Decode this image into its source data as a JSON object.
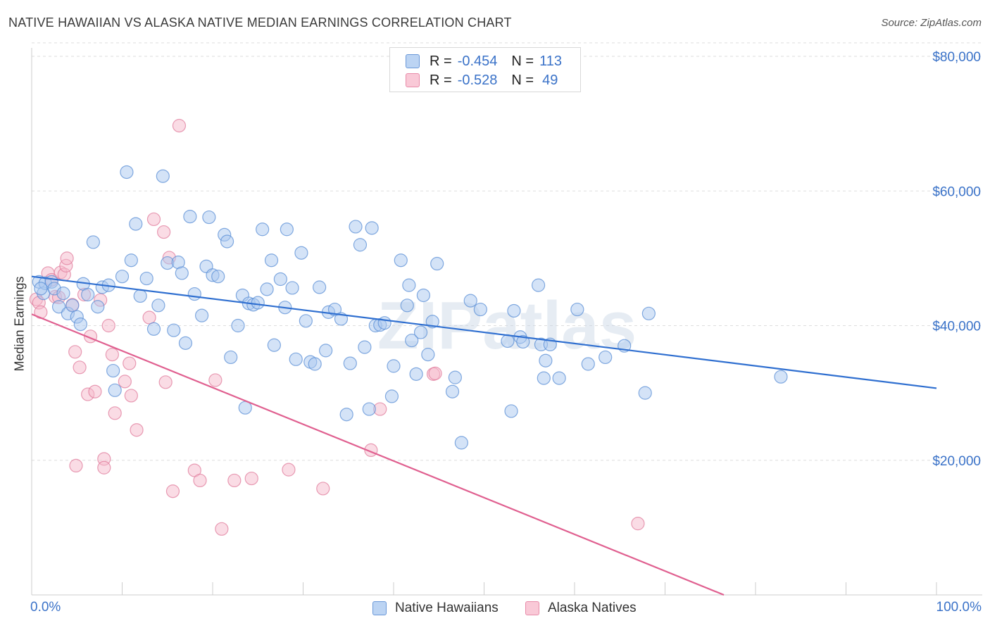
{
  "title": "NATIVE HAWAIIAN VS ALASKA NATIVE MEDIAN EARNINGS CORRELATION CHART",
  "source": "Source: ZipAtlas.com",
  "watermark": "ZIPatlas",
  "legend_top": [
    {
      "r_label": "R =",
      "r_value": "-0.454",
      "n_label": "N =",
      "n_value": "113"
    },
    {
      "r_label": "R =",
      "r_value": "-0.528",
      "n_label": "N =",
      "n_value": "49"
    }
  ],
  "colors": {
    "blue_fill": "#a9c8f0",
    "blue_stroke": "#5b8fd6",
    "blue_line": "#2f6fd0",
    "pink_fill": "#f6b9cc",
    "pink_stroke": "#e07c9c",
    "pink_line": "#e06090",
    "axis_text": "#3a72c8",
    "grid": "#dddddd"
  },
  "chart_data": {
    "type": "scatter",
    "title": "NATIVE HAWAIIAN VS ALASKA NATIVE MEDIAN EARNINGS CORRELATION CHART",
    "xlabel": "",
    "ylabel": "Median Earnings",
    "x_tick_labels": [
      "0.0%",
      "100.0%"
    ],
    "y_tick_labels": [
      "$20,000",
      "$40,000",
      "$60,000",
      "$80,000"
    ],
    "y_ticks": [
      20000,
      40000,
      60000,
      80000
    ],
    "xlim": [
      0,
      100
    ],
    "ylim": [
      0,
      82000
    ],
    "grid": true,
    "legend_position": "bottom",
    "series": [
      {
        "name": "Native Hawaiians",
        "trend": {
          "x": [
            0,
            100
          ],
          "y": [
            47300,
            30700
          ]
        },
        "points": [
          [
            0.8,
            46500
          ],
          [
            1.3,
            44800
          ],
          [
            1.5,
            46300
          ],
          [
            2.2,
            46500
          ],
          [
            2.5,
            45500
          ],
          [
            3.0,
            42800
          ],
          [
            3.5,
            44800
          ],
          [
            4.0,
            41800
          ],
          [
            4.5,
            43000
          ],
          [
            5.0,
            41300
          ],
          [
            5.4,
            40200
          ],
          [
            5.7,
            46200
          ],
          [
            6.2,
            44600
          ],
          [
            6.8,
            52400
          ],
          [
            7.3,
            42800
          ],
          [
            7.8,
            45700
          ],
          [
            8.5,
            46000
          ],
          [
            9.0,
            33300
          ],
          [
            9.2,
            30400
          ],
          [
            10.0,
            47300
          ],
          [
            10.5,
            62800
          ],
          [
            11.0,
            49700
          ],
          [
            11.5,
            55100
          ],
          [
            12.0,
            44400
          ],
          [
            12.7,
            47000
          ],
          [
            13.5,
            39500
          ],
          [
            14.0,
            43000
          ],
          [
            14.5,
            62200
          ],
          [
            15.0,
            49300
          ],
          [
            15.7,
            39300
          ],
          [
            16.2,
            49400
          ],
          [
            16.6,
            47800
          ],
          [
            17.0,
            37400
          ],
          [
            17.5,
            56200
          ],
          [
            18.0,
            44700
          ],
          [
            18.8,
            41500
          ],
          [
            19.3,
            48800
          ],
          [
            19.6,
            56100
          ],
          [
            20.0,
            47500
          ],
          [
            20.6,
            47300
          ],
          [
            21.3,
            53500
          ],
          [
            21.6,
            52500
          ],
          [
            22.0,
            35300
          ],
          [
            22.8,
            40000
          ],
          [
            23.3,
            44500
          ],
          [
            23.6,
            27800
          ],
          [
            24.0,
            43300
          ],
          [
            24.5,
            43100
          ],
          [
            25.0,
            43400
          ],
          [
            25.5,
            54300
          ],
          [
            26.0,
            45400
          ],
          [
            26.5,
            49700
          ],
          [
            26.8,
            37100
          ],
          [
            27.5,
            46900
          ],
          [
            28.0,
            42700
          ],
          [
            28.2,
            54300
          ],
          [
            28.8,
            45600
          ],
          [
            29.2,
            35000
          ],
          [
            29.8,
            50800
          ],
          [
            30.3,
            40700
          ],
          [
            30.8,
            34600
          ],
          [
            31.3,
            34300
          ],
          [
            31.8,
            45700
          ],
          [
            32.5,
            36300
          ],
          [
            32.8,
            42000
          ],
          [
            33.5,
            42400
          ],
          [
            34.2,
            41000
          ],
          [
            34.8,
            26800
          ],
          [
            35.2,
            34400
          ],
          [
            35.8,
            54700
          ],
          [
            36.3,
            52000
          ],
          [
            36.8,
            36800
          ],
          [
            37.3,
            27600
          ],
          [
            37.6,
            54500
          ],
          [
            38.0,
            40000
          ],
          [
            38.5,
            40100
          ],
          [
            39.0,
            40400
          ],
          [
            39.8,
            29500
          ],
          [
            40.0,
            34000
          ],
          [
            40.8,
            49700
          ],
          [
            41.5,
            43000
          ],
          [
            41.7,
            46000
          ],
          [
            42.0,
            37800
          ],
          [
            42.5,
            32800
          ],
          [
            43.0,
            39000
          ],
          [
            43.3,
            44500
          ],
          [
            43.8,
            35700
          ],
          [
            44.3,
            40600
          ],
          [
            44.8,
            49200
          ],
          [
            46.5,
            30200
          ],
          [
            46.8,
            32300
          ],
          [
            47.5,
            22600
          ],
          [
            48.5,
            43700
          ],
          [
            49.6,
            42400
          ],
          [
            52.6,
            37700
          ],
          [
            53.0,
            27300
          ],
          [
            53.3,
            42200
          ],
          [
            54.0,
            38300
          ],
          [
            54.3,
            37600
          ],
          [
            56.0,
            46000
          ],
          [
            56.3,
            37200
          ],
          [
            56.6,
            32200
          ],
          [
            56.8,
            34800
          ],
          [
            57.3,
            37200
          ],
          [
            58.3,
            32200
          ],
          [
            60.3,
            42400
          ],
          [
            61.5,
            34300
          ],
          [
            63.4,
            35300
          ],
          [
            65.5,
            37000
          ],
          [
            67.8,
            30000
          ],
          [
            68.2,
            41800
          ],
          [
            82.8,
            32400
          ],
          [
            1.0,
            45500
          ]
        ]
      },
      {
        "name": "Alaska Natives",
        "trend": {
          "x": [
            0,
            76.5
          ],
          "y": [
            41700,
            0
          ]
        },
        "points": [
          [
            0.5,
            43900
          ],
          [
            0.8,
            43400
          ],
          [
            1.0,
            42000
          ],
          [
            1.8,
            47800
          ],
          [
            2.2,
            46800
          ],
          [
            2.6,
            44300
          ],
          [
            3.0,
            44200
          ],
          [
            3.2,
            47900
          ],
          [
            3.6,
            47600
          ],
          [
            3.8,
            48900
          ],
          [
            3.9,
            50000
          ],
          [
            4.5,
            43100
          ],
          [
            4.8,
            36100
          ],
          [
            4.9,
            19200
          ],
          [
            5.3,
            33800
          ],
          [
            5.8,
            44600
          ],
          [
            6.2,
            29800
          ],
          [
            6.5,
            38400
          ],
          [
            7.0,
            30200
          ],
          [
            7.6,
            43800
          ],
          [
            8.0,
            20200
          ],
          [
            8.0,
            18900
          ],
          [
            8.5,
            40000
          ],
          [
            8.9,
            35700
          ],
          [
            9.2,
            27000
          ],
          [
            10.3,
            31700
          ],
          [
            10.8,
            34400
          ],
          [
            11.0,
            29600
          ],
          [
            11.6,
            24500
          ],
          [
            13.0,
            41200
          ],
          [
            13.5,
            55800
          ],
          [
            14.6,
            53900
          ],
          [
            14.8,
            31600
          ],
          [
            15.2,
            50100
          ],
          [
            15.6,
            15400
          ],
          [
            16.3,
            69700
          ],
          [
            18.0,
            18500
          ],
          [
            18.6,
            17000
          ],
          [
            20.3,
            31900
          ],
          [
            21.0,
            9800
          ],
          [
            22.4,
            17000
          ],
          [
            24.3,
            17300
          ],
          [
            28.4,
            18600
          ],
          [
            32.2,
            15800
          ],
          [
            37.5,
            21500
          ],
          [
            38.5,
            27600
          ],
          [
            44.4,
            32800
          ],
          [
            44.6,
            32900
          ],
          [
            67.0,
            10600
          ]
        ]
      }
    ]
  },
  "bottom_legend": [
    "Native Hawaiians",
    "Alaska Natives"
  ]
}
